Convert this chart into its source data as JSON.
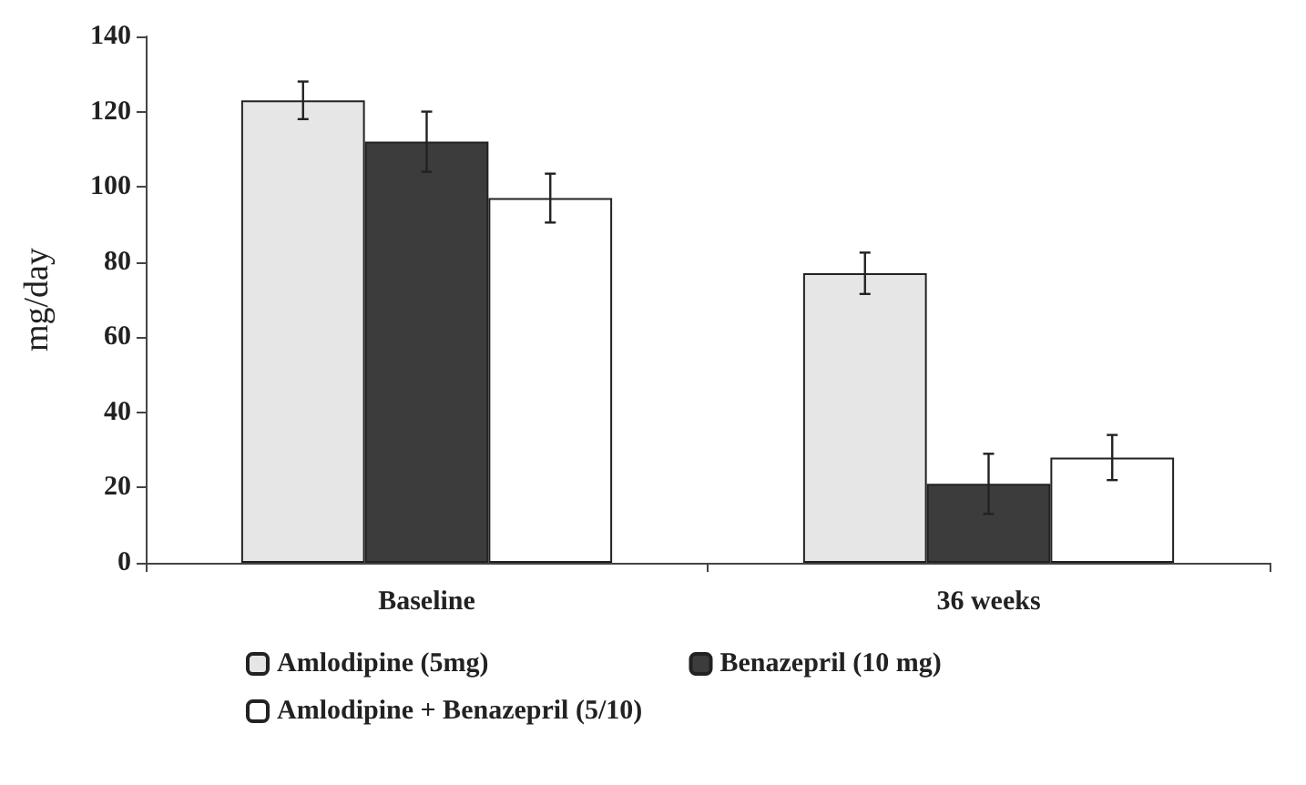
{
  "chart_data": {
    "type": "bar",
    "ylabel": "mg/day",
    "categories": [
      "Baseline",
      "36 weeks"
    ],
    "series": [
      {
        "name": "Amlodipine (5mg)",
        "color": "#e6e6e6",
        "values": [
          123,
          77
        ],
        "errors": [
          5,
          5.5
        ]
      },
      {
        "name": "Benazepril (10 mg)",
        "color": "#3c3c3c",
        "values": [
          112,
          21
        ],
        "errors": [
          8,
          8
        ]
      },
      {
        "name": "Amlodipine + Benazepril (5/10)",
        "color": "#ffffff",
        "values": [
          97,
          28
        ],
        "errors": [
          6.5,
          6
        ]
      }
    ],
    "ylim": [
      0,
      140
    ],
    "yticks": [
      0,
      20,
      40,
      60,
      80,
      100,
      120,
      140
    ],
    "grid": false,
    "legend": "bottom"
  }
}
